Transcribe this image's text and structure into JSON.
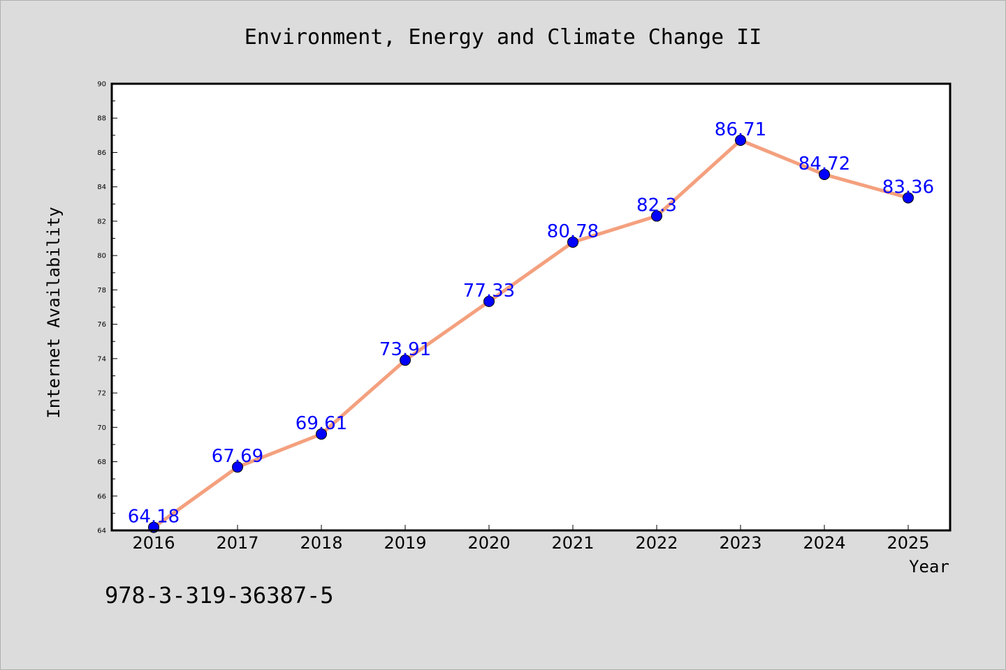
{
  "chart_data": {
    "type": "line",
    "title": "Environment, Energy and Climate Change II",
    "xlabel": "Year",
    "ylabel": "Internet Availability",
    "categories": [
      "2016",
      "2017",
      "2018",
      "2019",
      "2020",
      "2021",
      "2022",
      "2023",
      "2024",
      "2025"
    ],
    "series": [
      {
        "values": [
          64.18,
          67.69,
          69.61,
          73.91,
          77.33,
          80.78,
          82.3,
          86.71,
          84.72,
          83.36
        ],
        "labels": [
          "64.18",
          "67.69",
          "69.61",
          "73.91",
          "77.33",
          "80.78",
          "82.3",
          "86.71",
          "84.72",
          "83.36"
        ]
      }
    ],
    "ylim": [
      64,
      90
    ],
    "yticks": [
      "64",
      "66",
      "68",
      "70",
      "72",
      "74",
      "76",
      "78",
      "80",
      "82",
      "84",
      "86",
      "88",
      "90"
    ],
    "grid": false,
    "legend": "none",
    "colors": {
      "line": "#f4a07e",
      "marker": "#0000ff",
      "data_label": "#0000ff",
      "plot_background": "#ffffff",
      "figure_background": "#dcdcdc"
    }
  },
  "footer": {
    "isbn": "978-3-319-36387-5"
  }
}
